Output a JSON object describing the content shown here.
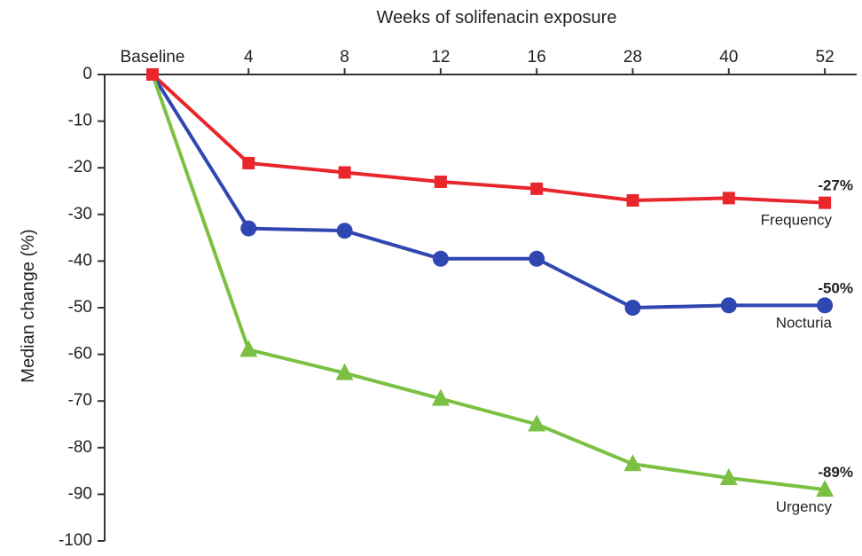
{
  "chart_data": {
    "type": "line",
    "xlabel": "Weeks of solifenacin exposure",
    "ylabel": "Median change (%)",
    "categories": [
      "Baseline",
      "4",
      "8",
      "12",
      "16",
      "28",
      "40",
      "52"
    ],
    "ylim": [
      -100,
      0
    ],
    "yticks": [
      "0",
      "-10",
      "-20",
      "-30",
      "-40",
      "-50",
      "-60",
      "-70",
      "-80",
      "-90",
      "-100"
    ],
    "grid": false,
    "series": [
      {
        "name": "Frequency",
        "marker": "square",
        "color": "#e8262c",
        "values": [
          0,
          -19,
          -21,
          -23,
          -24.5,
          -27,
          -26.5,
          -27.5
        ],
        "end_label": "-27%"
      },
      {
        "name": "Nocturia",
        "marker": "circle",
        "color": "#3046b0",
        "values": [
          0,
          -33,
          -33.5,
          -39.5,
          -39.5,
          -50,
          -49.5,
          -49.5
        ],
        "end_label": "-50%"
      },
      {
        "name": "Urgency",
        "marker": "triangle",
        "color": "#7ac143",
        "values": [
          0,
          -59,
          -64,
          -69.5,
          -75,
          -83.5,
          -86.5,
          -89
        ],
        "end_label": "-89%"
      }
    ]
  }
}
